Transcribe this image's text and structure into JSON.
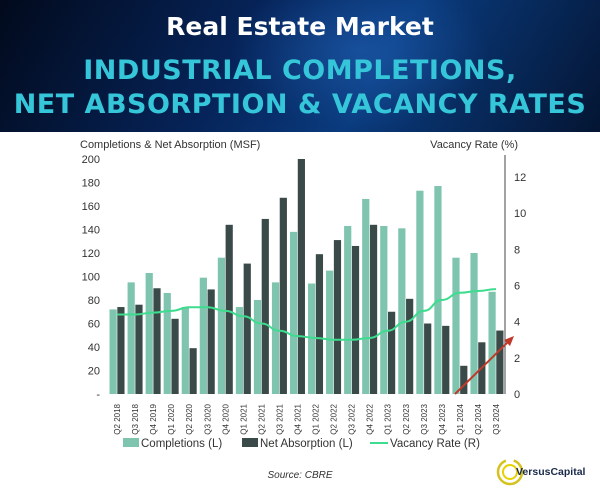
{
  "header": {
    "title": "Real Estate Market",
    "subtitle_line1": "INDUSTRIAL COMPLETIONS,",
    "subtitle_line2": "NET ABSORPTION & VACANCY RATES"
  },
  "source_text": "Source: CBRE",
  "logo": {
    "name": "VersusCapital"
  },
  "colors": {
    "completions": "#7ec4ae",
    "net_absorption": "#3a4a48",
    "vacancy": "#3ddc8e",
    "arrow": "#c0392b",
    "header_accent": "#35c6d9"
  },
  "chart_data": {
    "type": "bar",
    "left_axis_label": "Completions & Net Absorption (MSF)",
    "right_axis_label": "Vacancy Rate (%)",
    "ylim_left": [
      0,
      200
    ],
    "yticks_left": [
      "-",
      "20",
      "40",
      "60",
      "80",
      "100",
      "120",
      "140",
      "160",
      "180",
      "200"
    ],
    "ylim_right": [
      0,
      13
    ],
    "yticks_right": [
      "0",
      "2",
      "4",
      "6",
      "8",
      "10",
      "12"
    ],
    "categories": [
      "Q2 2018",
      "Q3 2018",
      "Q4 2019",
      "Q1 2020",
      "Q2 2020",
      "Q3 2020",
      "Q4 2020",
      "Q1 2021",
      "Q2 2021",
      "Q3 2021",
      "Q4 2021",
      "Q1 2022",
      "Q2 2022",
      "Q3 2022",
      "Q4 2022",
      "Q1 2023",
      "Q2 2023",
      "Q3 2023",
      "Q4 2023",
      "Q1 2024",
      "Q2 2024",
      "Q3 2024"
    ],
    "series": [
      {
        "name": "Completions (L)",
        "type": "bar",
        "axis": "left",
        "values": [
          72,
          95,
          103,
          86,
          74,
          99,
          116,
          74,
          80,
          95,
          138,
          94,
          105,
          143,
          166,
          143,
          141,
          173,
          177,
          116,
          120,
          87
        ]
      },
      {
        "name": "Net Absorption (L)",
        "type": "bar",
        "axis": "left",
        "values": [
          74,
          76,
          90,
          64,
          39,
          89,
          144,
          111,
          149,
          167,
          200,
          119,
          131,
          126,
          144,
          70,
          81,
          60,
          58,
          24,
          44,
          54
        ]
      },
      {
        "name": "Vacancy Rate (R)",
        "type": "line",
        "axis": "right",
        "values": [
          4.4,
          4.4,
          4.5,
          4.6,
          4.8,
          4.8,
          4.6,
          4.3,
          3.9,
          3.5,
          3.2,
          3.1,
          3.0,
          3.0,
          3.1,
          3.5,
          4.0,
          4.6,
          5.2,
          5.6,
          5.7,
          5.8
        ]
      }
    ],
    "legend_position": "bottom",
    "grid": false
  }
}
